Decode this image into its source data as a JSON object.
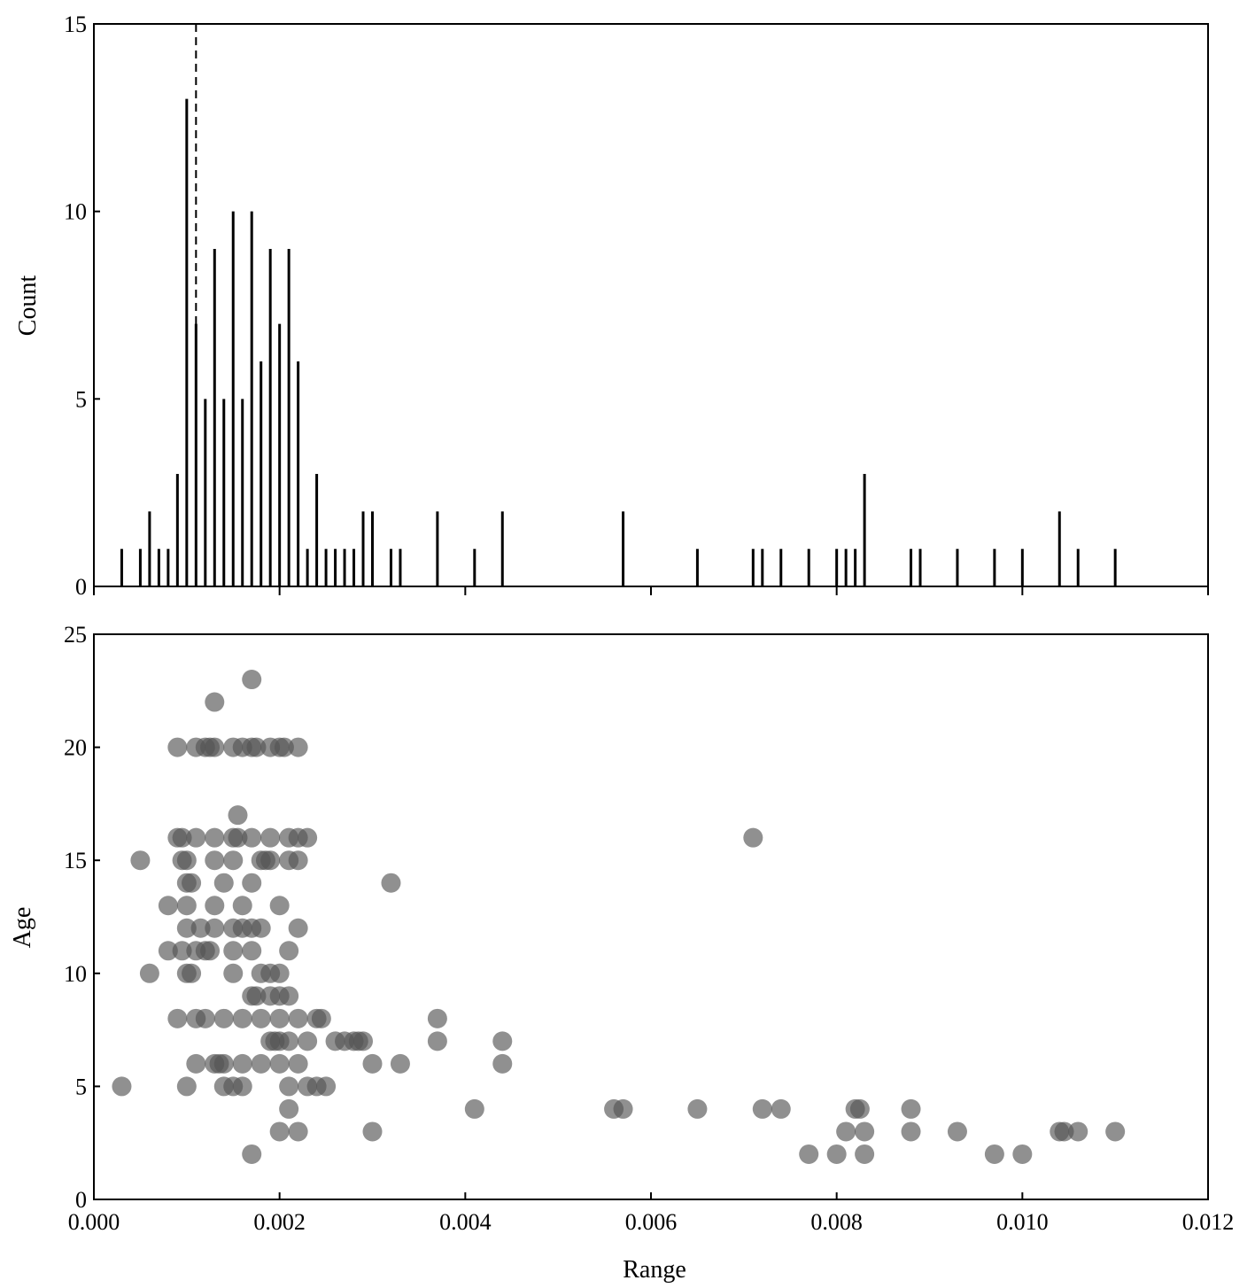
{
  "chart_data": [
    {
      "type": "bar",
      "title": "",
      "xlabel": "",
      "ylabel": "Count",
      "xlim": [
        0.0,
        0.012
      ],
      "ylim": [
        0,
        15
      ],
      "yticks": [
        "0",
        "5",
        "10",
        "15"
      ],
      "reference_line": {
        "x": 0.0011,
        "style": "dashed"
      },
      "bars": [
        {
          "x": 0.0003,
          "count": 1
        },
        {
          "x": 0.0005,
          "count": 1
        },
        {
          "x": 0.0006,
          "count": 2
        },
        {
          "x": 0.0007,
          "count": 1
        },
        {
          "x": 0.0008,
          "count": 1
        },
        {
          "x": 0.0009,
          "count": 3
        },
        {
          "x": 0.001,
          "count": 13
        },
        {
          "x": 0.0011,
          "count": 7
        },
        {
          "x": 0.0012,
          "count": 5
        },
        {
          "x": 0.0013,
          "count": 9
        },
        {
          "x": 0.0014,
          "count": 5
        },
        {
          "x": 0.0015,
          "count": 10
        },
        {
          "x": 0.0016,
          "count": 5
        },
        {
          "x": 0.0017,
          "count": 10
        },
        {
          "x": 0.0018,
          "count": 6
        },
        {
          "x": 0.0019,
          "count": 9
        },
        {
          "x": 0.002,
          "count": 7
        },
        {
          "x": 0.0021,
          "count": 9
        },
        {
          "x": 0.0022,
          "count": 6
        },
        {
          "x": 0.0023,
          "count": 1
        },
        {
          "x": 0.0024,
          "count": 3
        },
        {
          "x": 0.0025,
          "count": 1
        },
        {
          "x": 0.0026,
          "count": 1
        },
        {
          "x": 0.0027,
          "count": 1
        },
        {
          "x": 0.0028,
          "count": 1
        },
        {
          "x": 0.0029,
          "count": 2
        },
        {
          "x": 0.003,
          "count": 2
        },
        {
          "x": 0.0032,
          "count": 1
        },
        {
          "x": 0.0033,
          "count": 1
        },
        {
          "x": 0.0037,
          "count": 2
        },
        {
          "x": 0.0041,
          "count": 1
        },
        {
          "x": 0.0044,
          "count": 2
        },
        {
          "x": 0.0057,
          "count": 2
        },
        {
          "x": 0.0065,
          "count": 1
        },
        {
          "x": 0.0071,
          "count": 1
        },
        {
          "x": 0.0072,
          "count": 1
        },
        {
          "x": 0.0074,
          "count": 1
        },
        {
          "x": 0.0077,
          "count": 1
        },
        {
          "x": 0.008,
          "count": 1
        },
        {
          "x": 0.0081,
          "count": 1
        },
        {
          "x": 0.0082,
          "count": 1
        },
        {
          "x": 0.0083,
          "count": 3
        },
        {
          "x": 0.0088,
          "count": 1
        },
        {
          "x": 0.0089,
          "count": 1
        },
        {
          "x": 0.0093,
          "count": 1
        },
        {
          "x": 0.0097,
          "count": 1
        },
        {
          "x": 0.01,
          "count": 1
        },
        {
          "x": 0.0104,
          "count": 2
        },
        {
          "x": 0.0106,
          "count": 1
        },
        {
          "x": 0.011,
          "count": 1
        }
      ]
    },
    {
      "type": "scatter",
      "title": "",
      "xlabel": "Range",
      "ylabel": "Age",
      "xlim": [
        0.0,
        0.012
      ],
      "ylim": [
        0,
        25
      ],
      "xticks": [
        "0.000",
        "0.002",
        "0.004",
        "0.006",
        "0.008",
        "0.010",
        "0.012"
      ],
      "yticks": [
        "0",
        "5",
        "10",
        "15",
        "20",
        "25"
      ],
      "marker_color": "#555555",
      "points": [
        [
          0.0017,
          23
        ],
        [
          0.0013,
          22
        ],
        [
          0.0009,
          20
        ],
        [
          0.0011,
          20
        ],
        [
          0.0012,
          20
        ],
        [
          0.00125,
          20
        ],
        [
          0.0013,
          20
        ],
        [
          0.0015,
          20
        ],
        [
          0.0016,
          20
        ],
        [
          0.0017,
          20
        ],
        [
          0.00175,
          20
        ],
        [
          0.0019,
          20
        ],
        [
          0.002,
          20
        ],
        [
          0.00205,
          20
        ],
        [
          0.0022,
          20
        ],
        [
          0.00155,
          17
        ],
        [
          0.0071,
          16
        ],
        [
          0.0009,
          16
        ],
        [
          0.00095,
          16
        ],
        [
          0.0011,
          16
        ],
        [
          0.0013,
          16
        ],
        [
          0.0015,
          16
        ],
        [
          0.00155,
          16
        ],
        [
          0.0017,
          16
        ],
        [
          0.0019,
          16
        ],
        [
          0.0021,
          16
        ],
        [
          0.0022,
          16
        ],
        [
          0.0023,
          16
        ],
        [
          0.0005,
          15
        ],
        [
          0.00095,
          15
        ],
        [
          0.001,
          15
        ],
        [
          0.0013,
          15
        ],
        [
          0.0015,
          15
        ],
        [
          0.0018,
          15
        ],
        [
          0.00185,
          15
        ],
        [
          0.0019,
          15
        ],
        [
          0.0021,
          15
        ],
        [
          0.0022,
          15
        ],
        [
          0.001,
          14
        ],
        [
          0.00105,
          14
        ],
        [
          0.0014,
          14
        ],
        [
          0.0017,
          14
        ],
        [
          0.0032,
          14
        ],
        [
          0.0008,
          13
        ],
        [
          0.001,
          13
        ],
        [
          0.0013,
          13
        ],
        [
          0.0016,
          13
        ],
        [
          0.002,
          13
        ],
        [
          0.001,
          12
        ],
        [
          0.00115,
          12
        ],
        [
          0.0013,
          12
        ],
        [
          0.0015,
          12
        ],
        [
          0.0016,
          12
        ],
        [
          0.0017,
          12
        ],
        [
          0.0018,
          12
        ],
        [
          0.0022,
          12
        ],
        [
          0.0008,
          11
        ],
        [
          0.00095,
          11
        ],
        [
          0.0011,
          11
        ],
        [
          0.0012,
          11
        ],
        [
          0.00125,
          11
        ],
        [
          0.0015,
          11
        ],
        [
          0.0017,
          11
        ],
        [
          0.0021,
          11
        ],
        [
          0.0006,
          10
        ],
        [
          0.001,
          10
        ],
        [
          0.00105,
          10
        ],
        [
          0.0015,
          10
        ],
        [
          0.0018,
          10
        ],
        [
          0.0019,
          10
        ],
        [
          0.002,
          10
        ],
        [
          0.0017,
          9
        ],
        [
          0.00175,
          9
        ],
        [
          0.0019,
          9
        ],
        [
          0.002,
          9
        ],
        [
          0.0021,
          9
        ],
        [
          0.0009,
          8
        ],
        [
          0.0011,
          8
        ],
        [
          0.0012,
          8
        ],
        [
          0.0014,
          8
        ],
        [
          0.0016,
          8
        ],
        [
          0.0018,
          8
        ],
        [
          0.002,
          8
        ],
        [
          0.0022,
          8
        ],
        [
          0.0024,
          8
        ],
        [
          0.00245,
          8
        ],
        [
          0.0037,
          8
        ],
        [
          0.0019,
          7
        ],
        [
          0.00195,
          7
        ],
        [
          0.002,
          7
        ],
        [
          0.0021,
          7
        ],
        [
          0.0023,
          7
        ],
        [
          0.0026,
          7
        ],
        [
          0.0027,
          7
        ],
        [
          0.0028,
          7
        ],
        [
          0.00285,
          7
        ],
        [
          0.0029,
          7
        ],
        [
          0.0037,
          7
        ],
        [
          0.0044,
          7
        ],
        [
          0.0011,
          6
        ],
        [
          0.0013,
          6
        ],
        [
          0.00135,
          6
        ],
        [
          0.0014,
          6
        ],
        [
          0.0016,
          6
        ],
        [
          0.0018,
          6
        ],
        [
          0.002,
          6
        ],
        [
          0.0022,
          6
        ],
        [
          0.003,
          6
        ],
        [
          0.0033,
          6
        ],
        [
          0.0044,
          6
        ],
        [
          0.0003,
          5
        ],
        [
          0.001,
          5
        ],
        [
          0.0014,
          5
        ],
        [
          0.0015,
          5
        ],
        [
          0.0016,
          5
        ],
        [
          0.0021,
          5
        ],
        [
          0.0023,
          5
        ],
        [
          0.0024,
          5
        ],
        [
          0.0025,
          5
        ],
        [
          0.0021,
          4
        ],
        [
          0.0041,
          4
        ],
        [
          0.0056,
          4
        ],
        [
          0.0057,
          4
        ],
        [
          0.0065,
          4
        ],
        [
          0.0072,
          4
        ],
        [
          0.0074,
          4
        ],
        [
          0.0082,
          4
        ],
        [
          0.00825,
          4
        ],
        [
          0.0088,
          4
        ],
        [
          0.002,
          3
        ],
        [
          0.0022,
          3
        ],
        [
          0.003,
          3
        ],
        [
          0.0081,
          3
        ],
        [
          0.0083,
          3
        ],
        [
          0.0088,
          3
        ],
        [
          0.0093,
          3
        ],
        [
          0.0104,
          3
        ],
        [
          0.01045,
          3
        ],
        [
          0.0106,
          3
        ],
        [
          0.011,
          3
        ],
        [
          0.0017,
          2
        ],
        [
          0.0077,
          2
        ],
        [
          0.008,
          2
        ],
        [
          0.0083,
          2
        ],
        [
          0.0097,
          2
        ],
        [
          0.01,
          2
        ]
      ]
    }
  ]
}
